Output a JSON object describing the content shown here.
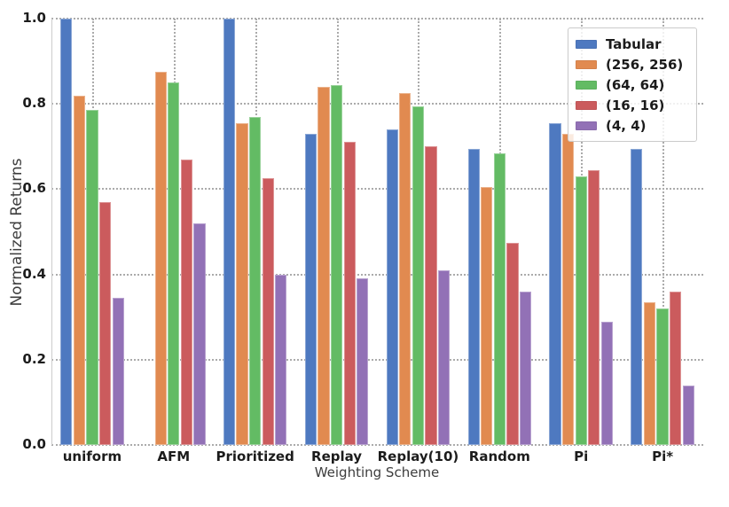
{
  "chart_data": {
    "type": "bar",
    "title": "",
    "xlabel": "Weighting Scheme",
    "ylabel": "Normalized Returns",
    "ylim": [
      0.0,
      1.0
    ],
    "yticks": [
      0.0,
      0.2,
      0.4,
      0.6,
      0.8,
      1.0
    ],
    "grid": "dotted gridlines on both axes, behind bars",
    "legend_position": "upper right",
    "categories": [
      "uniform",
      "AFM",
      "Prioritized",
      "Replay",
      "Replay(10)",
      "Random",
      "Pi",
      "Pi*"
    ],
    "series": [
      {
        "name": "Tabular",
        "color": "#4e79c0",
        "values": [
          1.0,
          null,
          1.0,
          0.73,
          0.74,
          0.695,
          0.755,
          0.695
        ]
      },
      {
        "name": "(256, 256)",
        "color": "#e18a50",
        "values": [
          0.82,
          0.875,
          0.755,
          0.84,
          0.825,
          0.605,
          0.73,
          0.335
        ]
      },
      {
        "name": "(64, 64)",
        "color": "#63bb64",
        "values": [
          0.785,
          0.85,
          0.77,
          0.845,
          0.795,
          0.685,
          0.63,
          0.32
        ]
      },
      {
        "name": "(16, 16)",
        "color": "#cb5b5d",
        "values": [
          0.57,
          0.67,
          0.625,
          0.71,
          0.7,
          0.475,
          0.645,
          0.36
        ]
      },
      {
        "name": "(4, 4)",
        "color": "#9271b6",
        "values": [
          0.345,
          0.52,
          0.4,
          0.39,
          0.41,
          0.36,
          0.29,
          0.14
        ]
      }
    ],
    "colors": {
      "grid": "#ababab",
      "tick_text": "#1c1c1c",
      "axis_label_text": "#3d3d3d",
      "legend_border": "#cbcbcb",
      "background": "#ffffff"
    }
  }
}
